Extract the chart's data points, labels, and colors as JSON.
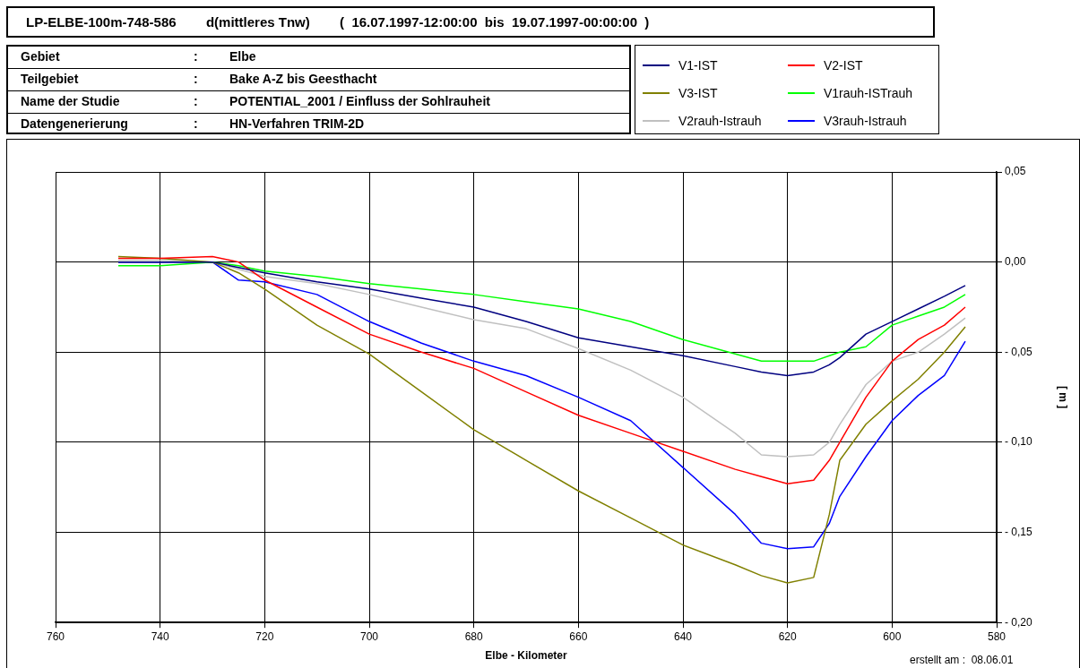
{
  "chart_data": {
    "type": "line",
    "title": "LP-ELBE-100m-748-586        d(mittleres Tnw)        (  16.07.1997-12:00:00  bis  19.07.1997-00:00:00  )",
    "xlabel": "Elbe - Kilometer",
    "ylabel": "[ m ]",
    "annotations": [
      "Gebiet\t:\tElbe",
      "Teilgebiet\t:\tBake A-Z bis Geesthacht",
      "Name der Studie\t:\tPOTENTIAL_2001 / Einfluss der Sohlrauheit",
      "Datengenerierung\t:\tHN-Verfahren TRIM-2D",
      "erstellt am :  08.06.01"
    ],
    "xlim": [
      760,
      580
    ],
    "xticks": [
      760,
      740,
      720,
      700,
      680,
      660,
      640,
      620,
      600,
      580
    ],
    "ylim": [
      -0.2,
      0.05
    ],
    "yticks": [
      {
        "value": 0.05,
        "label": "0,05"
      },
      {
        "value": 0,
        "label": "0,00"
      },
      {
        "value": -0.05,
        "label": "- 0,05"
      },
      {
        "value": -0.1,
        "label": "- 0,10"
      },
      {
        "value": -0.15,
        "label": "- 0,15"
      },
      {
        "value": -0.2,
        "label": "- 0,20"
      }
    ],
    "grid": true,
    "legend": "top right",
    "marker": "none",
    "line_style": "solid",
    "x": [
      748,
      740,
      730,
      725,
      720,
      710,
      700,
      690,
      680,
      670,
      660,
      650,
      640,
      630,
      625,
      620,
      615,
      612,
      610,
      605,
      600,
      595,
      590,
      586
    ],
    "series": [
      {
        "name": "V1-IST",
        "color": "#000080",
        "values": [
          0,
          0,
          0,
          -0.003,
          -0.006,
          -0.011,
          -0.015,
          -0.02,
          -0.025,
          -0.033,
          -0.042,
          -0.047,
          -0.052,
          -0.058,
          -0.061,
          -0.063,
          -0.061,
          -0.057,
          -0.053,
          -0.04,
          -0.033,
          -0.026,
          -0.019,
          -0.013
        ]
      },
      {
        "name": "V2-IST",
        "color": "#ff0000",
        "values": [
          0.002,
          0.002,
          0.003,
          0,
          -0.01,
          -0.025,
          -0.04,
          -0.05,
          -0.059,
          -0.072,
          -0.085,
          -0.095,
          -0.105,
          -0.115,
          -0.119,
          -0.123,
          -0.121,
          -0.11,
          -0.1,
          -0.075,
          -0.055,
          -0.043,
          -0.035,
          -0.025
        ]
      },
      {
        "name": "V3-IST",
        "color": "#808000",
        "values": [
          0.003,
          0.002,
          0,
          -0.006,
          -0.015,
          -0.035,
          -0.051,
          -0.072,
          -0.093,
          -0.11,
          -0.127,
          -0.142,
          -0.157,
          -0.168,
          -0.174,
          -0.178,
          -0.175,
          -0.14,
          -0.11,
          -0.09,
          -0.077,
          -0.065,
          -0.05,
          -0.036
        ]
      },
      {
        "name": "V1rauh-ISTrauh",
        "color": "#00ff00",
        "values": [
          -0.002,
          -0.002,
          0,
          -0.002,
          -0.005,
          -0.008,
          -0.012,
          -0.015,
          -0.018,
          -0.022,
          -0.026,
          -0.033,
          -0.043,
          -0.051,
          -0.055,
          -0.055,
          -0.055,
          -0.052,
          -0.05,
          -0.047,
          -0.035,
          -0.03,
          -0.025,
          -0.018
        ]
      },
      {
        "name": "V2rauh-Istrauh",
        "color": "#c0c0c0",
        "values": [
          0.001,
          0.001,
          0,
          -0.004,
          -0.008,
          -0.012,
          -0.018,
          -0.025,
          -0.032,
          -0.037,
          -0.048,
          -0.06,
          -0.075,
          -0.095,
          -0.107,
          -0.108,
          -0.107,
          -0.1,
          -0.09,
          -0.068,
          -0.055,
          -0.05,
          -0.04,
          -0.031
        ]
      },
      {
        "name": "V3rauh-Istrauh",
        "color": "#0000ff",
        "values": [
          0,
          0,
          0,
          -0.01,
          -0.011,
          -0.018,
          -0.033,
          -0.045,
          -0.055,
          -0.063,
          -0.075,
          -0.088,
          -0.114,
          -0.14,
          -0.156,
          -0.159,
          -0.158,
          -0.145,
          -0.13,
          -0.108,
          -0.088,
          -0.074,
          -0.063,
          -0.044
        ]
      }
    ]
  }
}
